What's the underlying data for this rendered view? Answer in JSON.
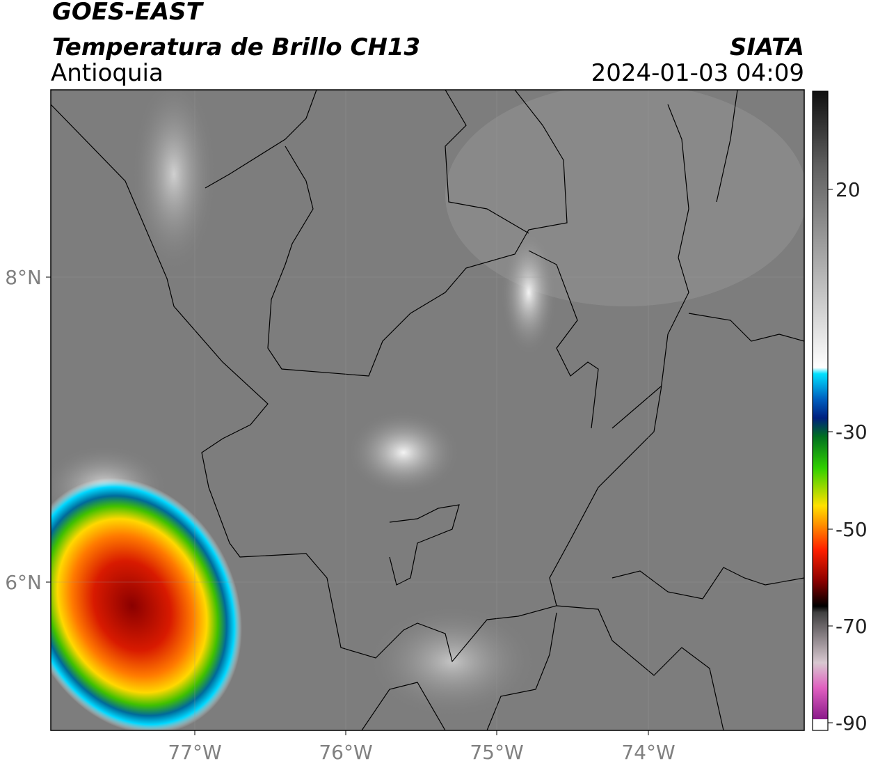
{
  "header": {
    "title": "GOES-EAST",
    "subtitle": "Temperatura de Brillo CH13",
    "region": "Antioquia",
    "source": "SIATA",
    "datetime": "2024-01-03 04:09"
  },
  "map": {
    "lon_labels": [
      "77°W",
      "76°W",
      "75°W",
      "74°W"
    ],
    "lat_labels": [
      "8°N",
      "6°N"
    ]
  },
  "colorbar": {
    "labels": [
      "20",
      "-30",
      "-50",
      "-70",
      "-90"
    ]
  }
}
